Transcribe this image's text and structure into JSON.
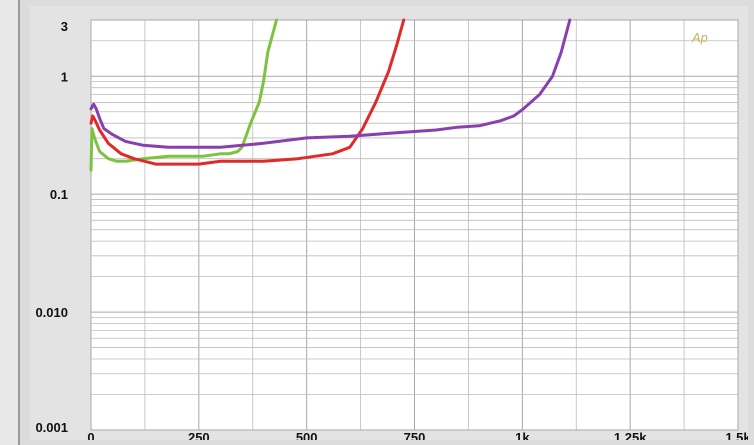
{
  "chart_data": {
    "type": "line",
    "title": "",
    "xlabel": "",
    "ylabel": "",
    "x_scale": "linear",
    "y_scale": "log",
    "xlim": [
      0,
      1500
    ],
    "ylim": [
      0.001,
      3
    ],
    "grid": true,
    "x_ticks": [
      {
        "value": 0,
        "label": "0"
      },
      {
        "value": 250,
        "label": "250"
      },
      {
        "value": 500,
        "label": "500"
      },
      {
        "value": 750,
        "label": "750"
      },
      {
        "value": 1000,
        "label": "1k"
      },
      {
        "value": 1250,
        "label": "1.25k"
      },
      {
        "value": 1500,
        "label": "1.5k"
      }
    ],
    "y_ticks": [
      {
        "value": 3,
        "label": "3"
      },
      {
        "value": 1,
        "label": "1"
      },
      {
        "value": 0.1,
        "label": "0.1"
      },
      {
        "value": 0.01,
        "label": "0.010"
      },
      {
        "value": 0.001,
        "label": "0.001"
      }
    ],
    "watermark": "Ap",
    "series": [
      {
        "color": "#7fc241",
        "x": [
          0,
          2,
          8,
          20,
          40,
          60,
          80,
          120,
          180,
          260,
          300,
          320,
          340,
          350,
          370,
          390,
          400,
          410,
          430
        ],
        "y": [
          0.16,
          0.36,
          0.3,
          0.23,
          0.2,
          0.19,
          0.19,
          0.2,
          0.21,
          0.21,
          0.22,
          0.22,
          0.23,
          0.25,
          0.4,
          0.6,
          0.9,
          1.6,
          3.0
        ]
      },
      {
        "color": "#e02a2a",
        "x": [
          0,
          4,
          10,
          20,
          40,
          70,
          100,
          150,
          210,
          250,
          300,
          400,
          480,
          560,
          600,
          630,
          660,
          690,
          710,
          725
        ],
        "y": [
          0.4,
          0.46,
          0.42,
          0.35,
          0.27,
          0.22,
          0.2,
          0.18,
          0.18,
          0.18,
          0.19,
          0.19,
          0.2,
          0.22,
          0.25,
          0.36,
          0.6,
          1.1,
          1.9,
          3.0
        ]
      },
      {
        "color": "#8a3fb0",
        "x": [
          0,
          6,
          12,
          20,
          30,
          50,
          80,
          120,
          180,
          250,
          300,
          400,
          500,
          600,
          700,
          800,
          850,
          900,
          950,
          980,
          1000,
          1040,
          1070,
          1090,
          1110
        ],
        "y": [
          0.53,
          0.58,
          0.53,
          0.44,
          0.36,
          0.32,
          0.28,
          0.26,
          0.25,
          0.25,
          0.25,
          0.27,
          0.3,
          0.31,
          0.33,
          0.35,
          0.37,
          0.38,
          0.42,
          0.46,
          0.52,
          0.7,
          1.0,
          1.6,
          3.0
        ]
      }
    ]
  }
}
